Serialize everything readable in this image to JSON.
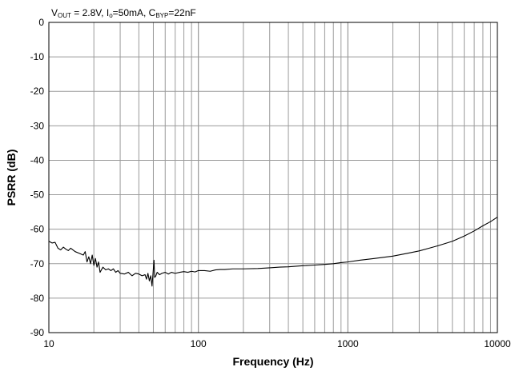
{
  "chart_data": {
    "type": "line",
    "title": "",
    "conditions": {
      "vout_main": "V",
      "vout_sub": "OUT",
      "vout_value": " = 2.8V, ",
      "io_main": "I",
      "io_sub": "o",
      "io_value": "=50mA, ",
      "cbyp_main": "C",
      "cbyp_sub": "BYP",
      "cbyp_value": "=22nF"
    },
    "xlabel": "Frequency (Hz)",
    "ylabel": "PSRR (dB)",
    "x_scale": "log",
    "xlim": [
      10,
      10000
    ],
    "ylim": [
      -90,
      0
    ],
    "grid": true,
    "x_ticks": [
      10,
      100,
      1000,
      10000
    ],
    "x_tick_labels": [
      "10",
      "100",
      "1000",
      "10000"
    ],
    "y_ticks": [
      0,
      -10,
      -20,
      -30,
      -40,
      -50,
      -60,
      -70,
      -80,
      -90
    ],
    "y_tick_labels": [
      "0",
      "-10",
      "-20",
      "-30",
      "-40",
      "-50",
      "-60",
      "-70",
      "-80",
      "-90"
    ],
    "line_color": "#000000",
    "series": [
      {
        "x": [
          10,
          10.5,
          11,
          11.5,
          12,
          12.5,
          13,
          13.5,
          14,
          15,
          16,
          17,
          17.5,
          18,
          18.5,
          19,
          19.5,
          20,
          20.5,
          21,
          21.5,
          22,
          23,
          24,
          25,
          26,
          27,
          28,
          29,
          30,
          32,
          34,
          36,
          38,
          40,
          42,
          44,
          45,
          46,
          47,
          48,
          49,
          50,
          50.5,
          51,
          52,
          53,
          55,
          57,
          60,
          63,
          66,
          70,
          75,
          80,
          85,
          90,
          95,
          100,
          110,
          120,
          130,
          140,
          150,
          170,
          200,
          250,
          300,
          350,
          400,
          500,
          600,
          700,
          800,
          900,
          1000,
          1200,
          1500,
          2000,
          2500,
          3000,
          3500,
          4000,
          5000,
          6000,
          7000,
          8000,
          9000,
          10000
        ],
        "y": [
          -63.5,
          -64,
          -63.8,
          -65.5,
          -66,
          -65.2,
          -65.8,
          -66.2,
          -65.5,
          -66.5,
          -67,
          -67.5,
          -66.5,
          -69.5,
          -68,
          -70,
          -67.5,
          -70.5,
          -68.5,
          -71,
          -69.5,
          -72.5,
          -71,
          -71.8,
          -71.5,
          -72,
          -71.5,
          -72.5,
          -72,
          -72.8,
          -73,
          -72.5,
          -73.5,
          -72.8,
          -73,
          -73.5,
          -73.2,
          -74.5,
          -72.8,
          -75,
          -73.5,
          -76.5,
          -71.5,
          -69,
          -74,
          -73.5,
          -72.5,
          -73.2,
          -72.8,
          -72.5,
          -73,
          -72.5,
          -72.8,
          -72.5,
          -72.3,
          -72.5,
          -72.2,
          -72.4,
          -72,
          -72,
          -72.2,
          -71.8,
          -71.7,
          -71.7,
          -71.5,
          -71.5,
          -71.4,
          -71.2,
          -71,
          -70.9,
          -70.6,
          -70.4,
          -70.2,
          -70,
          -69.7,
          -69.5,
          -69,
          -68.5,
          -67.8,
          -67,
          -66.3,
          -65.5,
          -64.8,
          -63.5,
          -62,
          -60.5,
          -59,
          -57.8,
          -56.5
        ]
      }
    ]
  }
}
